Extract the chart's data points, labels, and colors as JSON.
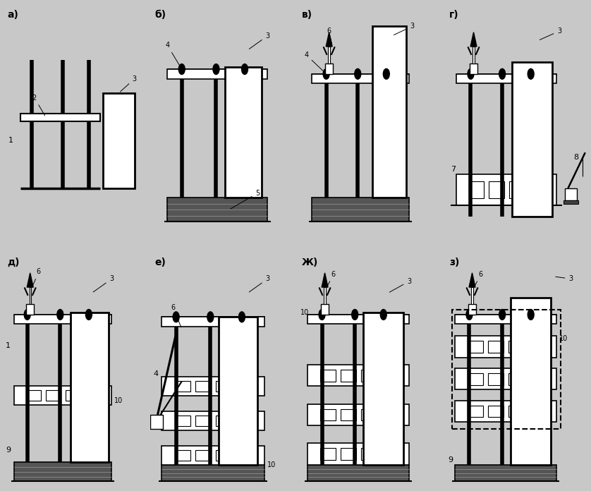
{
  "bg_color": "#c8c8c8",
  "panel_bg": "#ffffff",
  "lc": "#000000",
  "panels_top": [
    "а)",
    "б)",
    "в)",
    "г)"
  ],
  "panels_bot": [
    "д)",
    "е)",
    "Ж)",
    "з)"
  ]
}
